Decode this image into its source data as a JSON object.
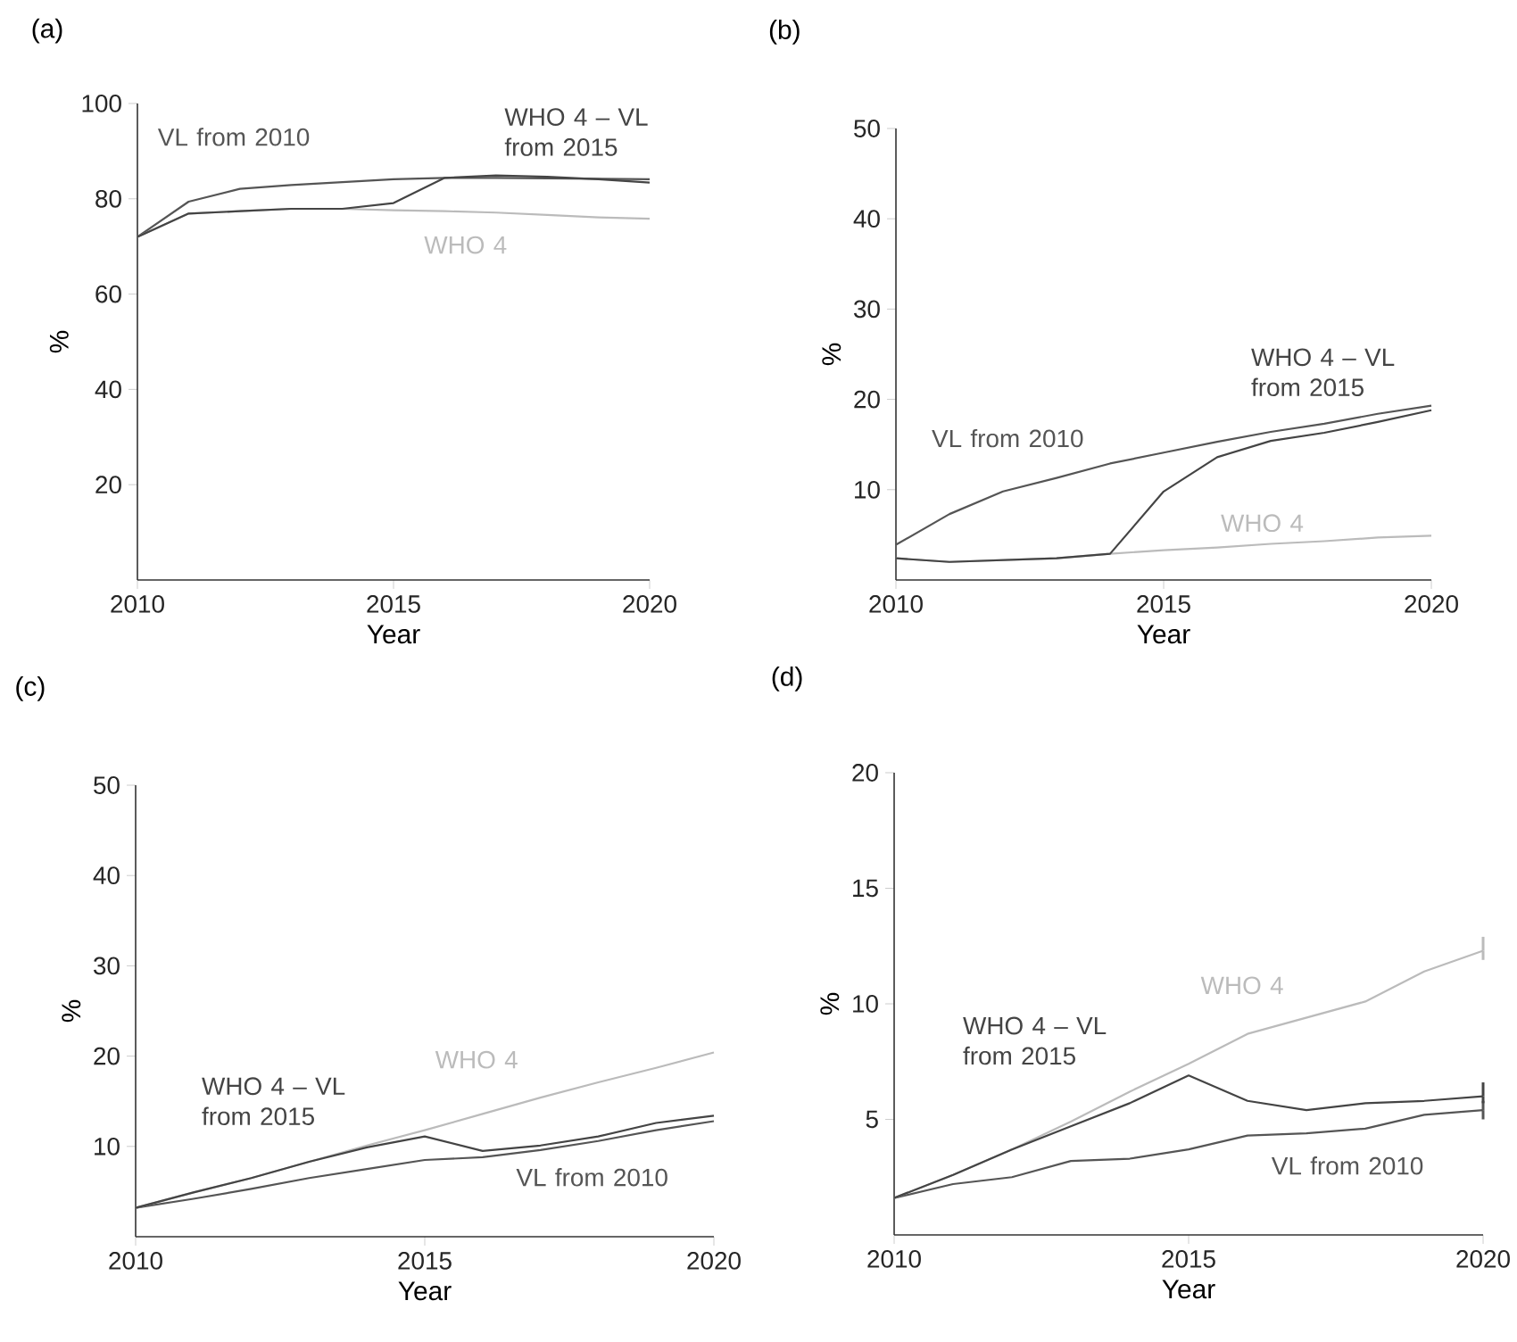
{
  "chart_data": [
    {
      "type": "line",
      "title": "(a)",
      "xlabel": "Year",
      "ylabel": "%",
      "x": [
        2010,
        2011,
        2012,
        2013,
        2014,
        2015,
        2016,
        2017,
        2018,
        2019,
        2020
      ],
      "xlim": [
        2010,
        2020
      ],
      "xticks": [
        2010,
        2015,
        2020
      ],
      "ylim": [
        0,
        100
      ],
      "yticks": [
        20,
        40,
        60,
        80,
        100
      ],
      "series": [
        {
          "name": "VL from 2010",
          "color": "#555555",
          "values": [
            72,
            79.4,
            82.1,
            82.9,
            83.5,
            84.1,
            84.4,
            84.4,
            84.3,
            84.2,
            84.1
          ]
        },
        {
          "name": "WHO 4",
          "color": "#bbbbbb",
          "values": [
            72,
            76.9,
            77.4,
            77.9,
            77.9,
            77.6,
            77.4,
            77.1,
            76.6,
            76.1,
            75.8
          ]
        },
        {
          "name": "WHO 4 – VL from 2015",
          "color": "#444444",
          "values": [
            72,
            76.9,
            77.4,
            77.9,
            77.9,
            79.1,
            84.4,
            84.9,
            84.6,
            84.1,
            83.4
          ]
        }
      ]
    },
    {
      "type": "line",
      "title": "(b)",
      "xlabel": "Year",
      "ylabel": "%",
      "x": [
        2010,
        2011,
        2012,
        2013,
        2014,
        2015,
        2016,
        2017,
        2018,
        2019,
        2020
      ],
      "xlim": [
        2010,
        2020
      ],
      "xticks": [
        2010,
        2015,
        2020
      ],
      "ylim": [
        0,
        50
      ],
      "yticks": [
        10,
        20,
        30,
        40,
        50
      ],
      "series": [
        {
          "name": "VL from 2010",
          "color": "#555555",
          "values": [
            3.9,
            7.3,
            9.8,
            11.3,
            12.9,
            14.1,
            15.3,
            16.4,
            17.3,
            18.4,
            19.3
          ]
        },
        {
          "name": "WHO 4",
          "color": "#bbbbbb",
          "values": [
            2.4,
            2.0,
            2.2,
            2.4,
            2.9,
            3.3,
            3.6,
            4.0,
            4.3,
            4.7,
            4.9
          ]
        },
        {
          "name": "WHO 4 – VL from 2015",
          "color": "#444444",
          "values": [
            2.4,
            2.0,
            2.2,
            2.4,
            2.9,
            9.8,
            13.6,
            15.4,
            16.3,
            17.5,
            18.8
          ]
        }
      ]
    },
    {
      "type": "line",
      "title": "(c)",
      "xlabel": "Year",
      "ylabel": "%",
      "x": [
        2010,
        2011,
        2012,
        2013,
        2014,
        2015,
        2016,
        2017,
        2018,
        2019,
        2020
      ],
      "xlim": [
        2010,
        2020
      ],
      "xticks": [
        2010,
        2015,
        2020
      ],
      "ylim": [
        0,
        50
      ],
      "yticks": [
        10,
        20,
        30,
        40,
        50
      ],
      "series": [
        {
          "name": "VL from 2010",
          "color": "#555555",
          "values": [
            3.2,
            4.2,
            5.3,
            6.5,
            7.5,
            8.5,
            8.8,
            9.6,
            10.6,
            11.8,
            12.8
          ]
        },
        {
          "name": "WHO 4",
          "color": "#bbbbbb",
          "values": [
            3.2,
            4.9,
            6.5,
            8.3,
            10.1,
            11.8,
            13.6,
            15.4,
            17.1,
            18.7,
            20.4
          ]
        },
        {
          "name": "WHO 4 – VL from 2015",
          "color": "#444444",
          "values": [
            3.2,
            4.9,
            6.5,
            8.3,
            9.9,
            11.1,
            9.5,
            10.1,
            11.1,
            12.6,
            13.4
          ]
        }
      ]
    },
    {
      "type": "line",
      "title": "(d)",
      "xlabel": "Year",
      "ylabel": "%",
      "x": [
        2010,
        2011,
        2012,
        2013,
        2014,
        2015,
        2016,
        2017,
        2018,
        2019,
        2020
      ],
      "xlim": [
        2010,
        2020
      ],
      "xticks": [
        2010,
        2015,
        2020
      ],
      "ylim": [
        0,
        20
      ],
      "yticks": [
        5,
        10,
        15,
        20
      ],
      "series": [
        {
          "name": "VL from 2010",
          "color": "#555555",
          "values": [
            1.6,
            2.2,
            2.5,
            3.2,
            3.3,
            3.7,
            4.3,
            4.4,
            4.6,
            5.2,
            5.4
          ],
          "errors": [
            null,
            null,
            null,
            null,
            null,
            null,
            null,
            null,
            null,
            null,
            [
              5.0,
              5.8
            ]
          ]
        },
        {
          "name": "WHO 4",
          "color": "#bbbbbb",
          "values": [
            1.6,
            2.6,
            3.7,
            4.9,
            6.2,
            7.4,
            8.7,
            9.4,
            10.1,
            11.4,
            12.3
          ],
          "errors": [
            null,
            null,
            null,
            null,
            null,
            null,
            null,
            null,
            null,
            null,
            [
              11.9,
              12.9
            ]
          ]
        },
        {
          "name": "WHO 4 – VL from 2015",
          "color": "#444444",
          "values": [
            1.6,
            2.6,
            3.7,
            4.7,
            5.7,
            6.9,
            5.8,
            5.4,
            5.7,
            5.8,
            6.0
          ],
          "errors": [
            null,
            null,
            null,
            null,
            null,
            null,
            null,
            null,
            null,
            null,
            [
              5.7,
              6.6
            ]
          ]
        }
      ]
    }
  ]
}
